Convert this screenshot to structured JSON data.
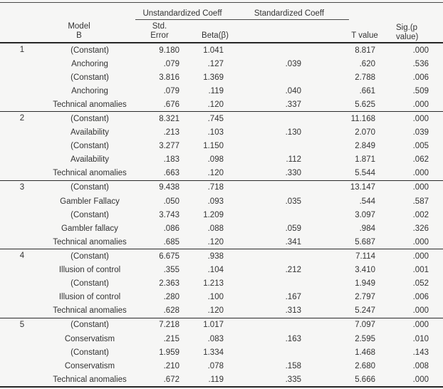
{
  "colors": {
    "background": "#f6f6f5",
    "text": "#333333",
    "rule_thin": "#474747",
    "rule_heavy": "#262626"
  },
  "table": {
    "headers": {
      "unstandardized_coeff": "Unstandardized Coeff",
      "standardized_coeff": "Standardized Coeff",
      "sig_line1": "Sig.(p",
      "sig_line2": "value)",
      "model_line1": "Model",
      "model_line2": "B",
      "std_error_line1": "Std.",
      "std_error_line2": "Error",
      "beta": "Beta(β)",
      "t_value": "T value"
    },
    "models": [
      {
        "number": "1",
        "rows": [
          {
            "label": "(Constant)",
            "b": "9.180",
            "se": "1.041",
            "beta": "",
            "t": "8.817",
            "sig": ".000"
          },
          {
            "label": "Anchoring",
            "b": ".079",
            "se": ".127",
            "beta": ".039",
            "t": ".620",
            "sig": ".536"
          },
          {
            "label": "(Constant)",
            "b": "3.816",
            "se": "1.369",
            "beta": "",
            "t": "2.788",
            "sig": ".006"
          },
          {
            "label": "Anchoring",
            "b": ".079",
            "se": ".119",
            "beta": ".040",
            "t": ".661",
            "sig": ".509"
          },
          {
            "label": "Technical anomalies",
            "b": ".676",
            "se": ".120",
            "beta": ".337",
            "t": "5.625",
            "sig": ".000"
          }
        ]
      },
      {
        "number": "2",
        "rows": [
          {
            "label": "(Constant)",
            "b": "8.321",
            "se": ".745",
            "beta": "",
            "t": "11.168",
            "sig": ".000"
          },
          {
            "label": "Availability",
            "b": ".213",
            "se": ".103",
            "beta": ".130",
            "t": "2.070",
            "sig": ".039"
          },
          {
            "label": "(Constant)",
            "b": "3.277",
            "se": "1.150",
            "beta": "",
            "t": "2.849",
            "sig": ".005"
          },
          {
            "label": "Availability",
            "b": ".183",
            "se": ".098",
            "beta": ".112",
            "t": "1.871",
            "sig": ".062"
          },
          {
            "label": "Technical anomalies",
            "b": ".663",
            "se": ".120",
            "beta": ".330",
            "t": "5.544",
            "sig": ".000"
          }
        ]
      },
      {
        "number": "3",
        "rows": [
          {
            "label": "(Constant)",
            "b": "9.438",
            "se": ".718",
            "beta": "",
            "t": "13.147",
            "sig": ".000"
          },
          {
            "label": "Gambler Fallacy",
            "b": ".050",
            "se": ".093",
            "beta": ".035",
            "t": ".544",
            "sig": ".587"
          },
          {
            "label": "(Constant)",
            "b": "3.743",
            "se": "1.209",
            "beta": "",
            "t": "3.097",
            "sig": ".002"
          },
          {
            "label": "Gambler fallacy",
            "b": ".086",
            "se": ".088",
            "beta": ".059",
            "t": ".984",
            "sig": ".326"
          },
          {
            "label": "Technical anomalies",
            "b": ".685",
            "se": ".120",
            "beta": ".341",
            "t": "5.687",
            "sig": ".000"
          }
        ]
      },
      {
        "number": "4",
        "rows": [
          {
            "label": "(Constant)",
            "b": "6.675",
            "se": ".938",
            "beta": "",
            "t": "7.114",
            "sig": ".000"
          },
          {
            "label": "Illusion of control",
            "b": ".355",
            "se": ".104",
            "beta": ".212",
            "t": "3.410",
            "sig": ".001"
          },
          {
            "label": "(Constant)",
            "b": "2.363",
            "se": "1.213",
            "beta": "",
            "t": "1.949",
            "sig": ".052"
          },
          {
            "label": "Illusion of control",
            "b": ".280",
            "se": ".100",
            "beta": ".167",
            "t": "2.797",
            "sig": ".006"
          },
          {
            "label": "Technical anomalies",
            "b": ".628",
            "se": ".120",
            "beta": ".313",
            "t": "5.247",
            "sig": ".000"
          }
        ]
      },
      {
        "number": "5",
        "rows": [
          {
            "label": "(Constant)",
            "b": "7.218",
            "se": "1.017",
            "beta": "",
            "t": "7.097",
            "sig": ".000"
          },
          {
            "label": "Conservatism",
            "b": ".215",
            "se": ".083",
            "beta": ".163",
            "t": "2.595",
            "sig": ".010"
          },
          {
            "label": "(Constant)",
            "b": "1.959",
            "se": "1.334",
            "beta": "",
            "t": "1.468",
            "sig": ".143"
          },
          {
            "label": "Conservatism",
            "b": ".210",
            "se": ".078",
            "beta": ".158",
            "t": "2.680",
            "sig": ".008"
          },
          {
            "label": "Technical anomalies",
            "b": ".672",
            "se": ".119",
            "beta": ".335",
            "t": "5.666",
            "sig": ".000"
          }
        ]
      }
    ]
  }
}
